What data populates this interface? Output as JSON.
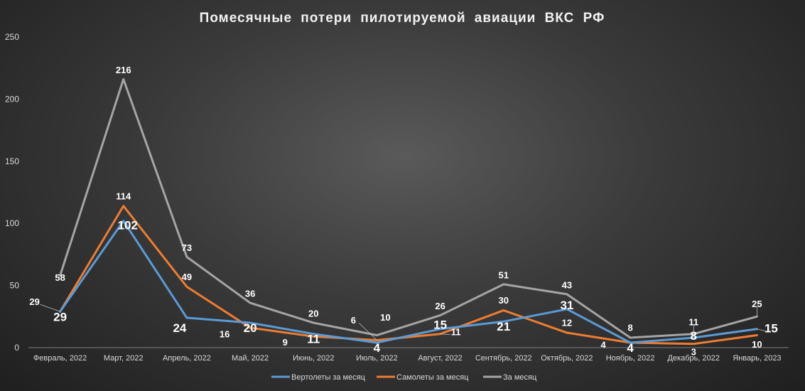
{
  "chart_data": {
    "type": "line",
    "title": "Помесячные потери пилотируемой авиации ВКС РФ",
    "categories": [
      "Февраль, 2022",
      "Март, 2022",
      "Апрель, 2022",
      "Май, 2022",
      "Июнь, 2022",
      "Июль, 2022",
      "Август, 2022",
      "Сентябрь, 2022",
      "Октябрь, 2022",
      "Ноябрь, 2022",
      "Декабрь, 2022",
      "Январь, 2023"
    ],
    "ylim": [
      0,
      250
    ],
    "yticks": [
      0,
      50,
      100,
      150,
      200,
      250
    ],
    "grid": false,
    "legend_position": "bottom",
    "series": [
      {
        "name": "Вертолеты за месяц",
        "color": "#5b9bd5",
        "values": [
          29,
          102,
          24,
          20,
          11,
          4,
          15,
          21,
          31,
          4,
          8,
          15
        ]
      },
      {
        "name": "Самолеты за месяц",
        "color": "#ed7d31",
        "values": [
          29,
          114,
          49,
          16,
          9,
          6,
          11,
          30,
          12,
          4,
          3,
          10
        ]
      },
      {
        "name": "За месяц",
        "color": "#a5a5a5",
        "values": [
          58,
          216,
          73,
          36,
          20,
          10,
          26,
          51,
          43,
          8,
          11,
          25
        ]
      }
    ]
  }
}
